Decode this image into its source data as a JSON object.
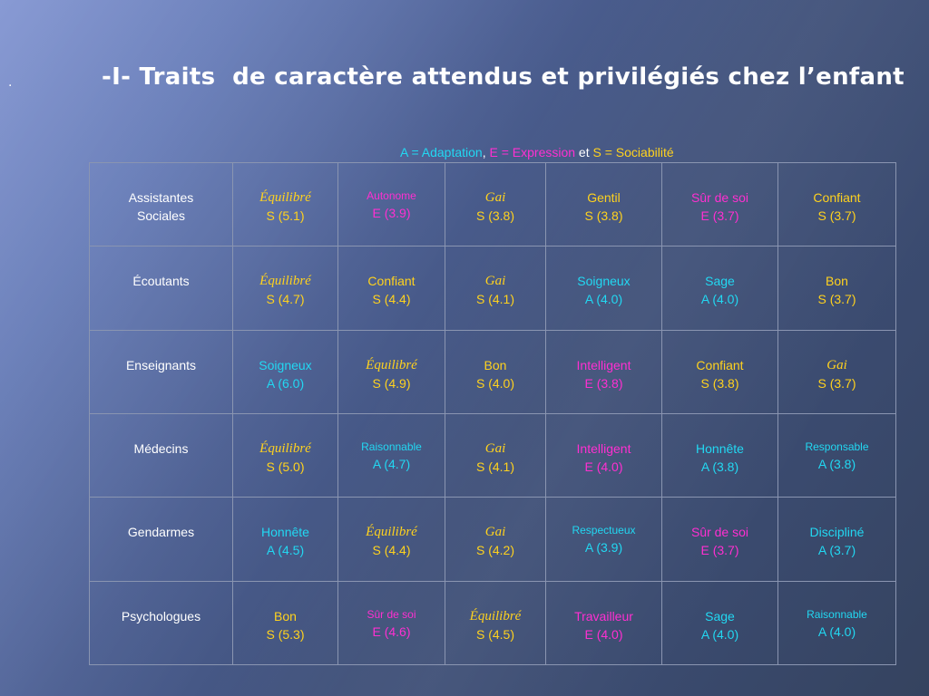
{
  "bullet": ".",
  "title": "-I- Traits  de caractère attendus et privilégiés chez l’enfant",
  "legend": {
    "adaptation": "A = Adaptation",
    "sep1": ", ",
    "expression": "E = Expression",
    "sep2": " et ",
    "sociabilite": "S = Sociabilité"
  },
  "colors": {
    "adaptation": "#22d8f2",
    "expression": "#ff2fd1",
    "sociabilite": "#ffd21e",
    "header": "#ffffff"
  },
  "rows": [
    {
      "header": "Assistantes Sociales",
      "cells": [
        {
          "trait": "Équilibré",
          "score": "S (5.1)"
        },
        {
          "trait": "Autonome",
          "score": "E (3.9)"
        },
        {
          "trait": "Gai",
          "score": "S (3.8)"
        },
        {
          "trait": "Gentil",
          "score": "S (3.8)"
        },
        {
          "trait": "Sûr de soi",
          "score": "E (3.7)"
        },
        {
          "trait": "Confiant",
          "score": "S (3.7)"
        }
      ]
    },
    {
      "header": "Écoutants",
      "cells": [
        {
          "trait": "Équilibré",
          "score": "S (4.7)"
        },
        {
          "trait": "Confiant",
          "score": "S (4.4)"
        },
        {
          "trait": "Gai",
          "score": "S (4.1)"
        },
        {
          "trait": "Soigneux",
          "score": "A (4.0)"
        },
        {
          "trait": "Sage",
          "score": "A (4.0)"
        },
        {
          "trait": "Bon",
          "score": "S (3.7)"
        }
      ]
    },
    {
      "header": "Enseignants",
      "cells": [
        {
          "trait": "Soigneux",
          "score": "A (6.0)"
        },
        {
          "trait": "Équilibré",
          "score": "S (4.9)"
        },
        {
          "trait": "Bon",
          "score": "S (4.0)"
        },
        {
          "trait": "Intelligent",
          "score": "E (3.8)"
        },
        {
          "trait": "Confiant",
          "score": "S (3.8)"
        },
        {
          "trait": "Gai",
          "score": "S (3.7)"
        }
      ]
    },
    {
      "header": "Médecins",
      "cells": [
        {
          "trait": "Équilibré",
          "score": "S (5.0)"
        },
        {
          "trait": "Raisonnable",
          "score": "A (4.7)"
        },
        {
          "trait": "Gai",
          "score": "S (4.1)"
        },
        {
          "trait": "Intelligent",
          "score": "E (4.0)"
        },
        {
          "trait": "Honnête",
          "score": "A (3.8)"
        },
        {
          "trait": "Responsable",
          "score": "A (3.8)"
        }
      ]
    },
    {
      "header": "Gendarmes",
      "cells": [
        {
          "trait": "Honnête",
          "score": "A (4.5)"
        },
        {
          "trait": "Équilibré",
          "score": "S (4.4)"
        },
        {
          "trait": "Gai",
          "score": "S (4.2)"
        },
        {
          "trait": "Respectueux",
          "score": "A (3.9)"
        },
        {
          "trait": "Sûr de soi",
          "score": "E (3.7)"
        },
        {
          "trait": "Discipliné",
          "score": "A (3.7)"
        }
      ]
    },
    {
      "header": "Psychologues",
      "cells": [
        {
          "trait": "Bon",
          "score": "S (5.3)"
        },
        {
          "trait": "Sûr de  soi",
          "score": "E (4.6)"
        },
        {
          "trait": "Équilibré",
          "score": "S (4.5)"
        },
        {
          "trait": "Travailleur",
          "score": "E (4.0)"
        },
        {
          "trait": "Sage",
          "score": "A (4.0)"
        },
        {
          "trait": "Raisonnable",
          "score": "A (4.0)"
        }
      ]
    }
  ]
}
